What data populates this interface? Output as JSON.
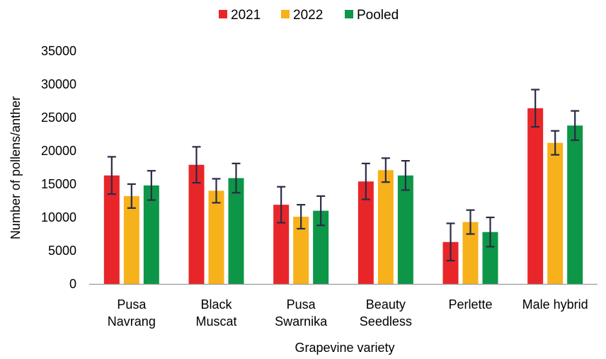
{
  "chart_data": {
    "type": "bar",
    "title": "",
    "xlabel": "Grapevine variety",
    "ylabel": "Number of pollens/anther",
    "ylim": [
      0,
      35000
    ],
    "yticks": [
      0,
      5000,
      10000,
      15000,
      20000,
      25000,
      30000,
      35000
    ],
    "grid": false,
    "legend_position": "top",
    "categories": [
      [
        "Pusa",
        "Navrang"
      ],
      [
        "Black",
        "Muscat"
      ],
      [
        "Pusa",
        "Swarnika"
      ],
      [
        "Beauty",
        "Seedless"
      ],
      [
        "Perlette"
      ],
      [
        "Male hybrid"
      ]
    ],
    "series": [
      {
        "name": "2021",
        "color": "#e8262a",
        "values": [
          16300,
          17900,
          11900,
          15400,
          6300,
          26400
        ],
        "errors": [
          2800,
          2700,
          2700,
          2700,
          2800,
          2800
        ]
      },
      {
        "name": "2022",
        "color": "#f7b11a",
        "values": [
          13200,
          14000,
          10100,
          17100,
          9300,
          21200
        ],
        "errors": [
          1800,
          1800,
          1800,
          1800,
          1800,
          1800
        ]
      },
      {
        "name": "Pooled",
        "color": "#0d9647",
        "values": [
          14800,
          15900,
          11000,
          16300,
          7800,
          23800
        ],
        "errors": [
          2200,
          2200,
          2200,
          2200,
          2200,
          2200
        ]
      }
    ],
    "error_bar_color": "#2b2b45"
  }
}
